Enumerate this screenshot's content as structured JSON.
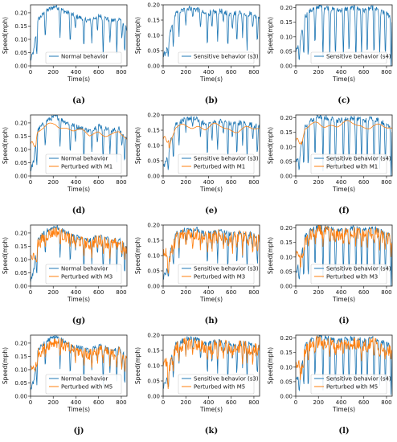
{
  "chart_data": [
    {
      "caption": "(a)",
      "type": "line",
      "xlabel": "Time(s)",
      "ylabel": "Speed(mph)",
      "xlim": [
        0,
        850
      ],
      "ylim": [
        0,
        0.23
      ],
      "xticks": [
        0,
        200,
        400,
        600,
        800
      ],
      "yticks": [
        0.0,
        0.05,
        0.1,
        0.15,
        0.2
      ],
      "legend_position": "bottom-center",
      "series": [
        {
          "name": "Normal behavior",
          "style": "ref",
          "profile": "normal"
        }
      ]
    },
    {
      "caption": "(b)",
      "type": "line",
      "xlabel": "Time(s)",
      "ylabel": "Speed(mph)",
      "xlim": [
        0,
        850
      ],
      "ylim": [
        0,
        0.2
      ],
      "xticks": [
        0,
        200,
        400,
        600,
        800
      ],
      "yticks": [
        0.0,
        0.05,
        0.1,
        0.15,
        0.2
      ],
      "legend_position": "bottom-center",
      "series": [
        {
          "name": "Sensitive behavior (s3)",
          "style": "ref",
          "profile": "s3"
        }
      ]
    },
    {
      "caption": "(c)",
      "type": "line",
      "xlabel": "Time(s)",
      "ylabel": "Speed(mph)",
      "xlim": [
        0,
        850
      ],
      "ylim": [
        0,
        0.21
      ],
      "xticks": [
        0,
        200,
        400,
        600,
        800
      ],
      "yticks": [
        0.0,
        0.05,
        0.1,
        0.15,
        0.2
      ],
      "legend_position": "bottom-center",
      "series": [
        {
          "name": "Sensitive behavior (s4)",
          "style": "ref",
          "profile": "s4"
        }
      ]
    },
    {
      "caption": "(d)",
      "type": "line",
      "xlabel": "Time(s)",
      "ylabel": "Speed(mph)",
      "xlim": [
        0,
        850
      ],
      "ylim": [
        0,
        0.23
      ],
      "xticks": [
        0,
        200,
        400,
        600,
        800
      ],
      "yticks": [
        0.0,
        0.05,
        0.1,
        0.15,
        0.2
      ],
      "legend_position": "bottom-center",
      "series": [
        {
          "name": "Normal behavior",
          "style": "ref",
          "profile": "normal"
        },
        {
          "name": "Perturbed with M1",
          "style": "smooth",
          "profile": "normal"
        }
      ]
    },
    {
      "caption": "(e)",
      "type": "line",
      "xlabel": "Time(s)",
      "ylabel": "Speed(mph)",
      "xlim": [
        0,
        850
      ],
      "ylim": [
        0,
        0.2
      ],
      "xticks": [
        0,
        200,
        400,
        600,
        800
      ],
      "yticks": [
        0.0,
        0.05,
        0.1,
        0.15,
        0.2
      ],
      "legend_position": "bottom-center",
      "series": [
        {
          "name": "Sensitive behavior (s3)",
          "style": "ref",
          "profile": "s3"
        },
        {
          "name": "Perturbed with M1",
          "style": "smooth",
          "profile": "s3"
        }
      ]
    },
    {
      "caption": "(f)",
      "type": "line",
      "xlabel": "Time(s)",
      "ylabel": "Speed(mph)",
      "xlim": [
        0,
        850
      ],
      "ylim": [
        0,
        0.21
      ],
      "xticks": [
        0,
        200,
        400,
        600,
        800
      ],
      "yticks": [
        0.0,
        0.05,
        0.1,
        0.15,
        0.2
      ],
      "legend_position": "bottom-center",
      "series": [
        {
          "name": "Sensitive behavior (s4)",
          "style": "ref",
          "profile": "s4"
        },
        {
          "name": "Perturbed with M1",
          "style": "smooth",
          "profile": "s4"
        }
      ]
    },
    {
      "caption": "(g)",
      "type": "line",
      "xlabel": "Time(s)",
      "ylabel": "Speed(mph)",
      "xlim": [
        0,
        850
      ],
      "ylim": [
        0,
        0.23
      ],
      "xticks": [
        0,
        200,
        400,
        600,
        800
      ],
      "yticks": [
        0.0,
        0.05,
        0.1,
        0.15,
        0.2
      ],
      "legend_position": "bottom-center",
      "series": [
        {
          "name": "Normal behavior",
          "style": "ref",
          "profile": "normal"
        },
        {
          "name": "Perturbed with M3",
          "style": "noisy",
          "profile": "normal"
        }
      ]
    },
    {
      "caption": "(h)",
      "type": "line",
      "xlabel": "Time(s)",
      "ylabel": "Speed(mph)",
      "xlim": [
        0,
        850
      ],
      "ylim": [
        0,
        0.2
      ],
      "xticks": [
        0,
        200,
        400,
        600,
        800
      ],
      "yticks": [
        0.0,
        0.05,
        0.1,
        0.15,
        0.2
      ],
      "legend_position": "bottom-center",
      "series": [
        {
          "name": "Sensitive behavior (s3)",
          "style": "ref",
          "profile": "s3"
        },
        {
          "name": "Perturbed with M3",
          "style": "noisy",
          "profile": "s3"
        }
      ]
    },
    {
      "caption": "(i)",
      "type": "line",
      "xlabel": "Time(s)",
      "ylabel": "Speed(mph)",
      "xlim": [
        0,
        850
      ],
      "ylim": [
        0,
        0.21
      ],
      "xticks": [
        0,
        200,
        400,
        600,
        800
      ],
      "yticks": [
        0.0,
        0.05,
        0.1,
        0.15,
        0.2
      ],
      "legend_position": "bottom-center",
      "series": [
        {
          "name": "Sensitive behavior (s4)",
          "style": "ref",
          "profile": "s4"
        },
        {
          "name": "Perturbed with M3",
          "style": "noisy",
          "profile": "s4"
        }
      ]
    },
    {
      "caption": "(j)",
      "type": "line",
      "xlabel": "Time(s)",
      "ylabel": "Speed(mph)",
      "xlim": [
        0,
        850
      ],
      "ylim": [
        0,
        0.23
      ],
      "xticks": [
        0,
        200,
        400,
        600,
        800
      ],
      "yticks": [
        0.0,
        0.05,
        0.1,
        0.15,
        0.2
      ],
      "legend_position": "bottom-center",
      "series": [
        {
          "name": "Normal behavior",
          "style": "ref",
          "profile": "normal"
        },
        {
          "name": "Perturbed with M5",
          "style": "noisy",
          "profile": "normal"
        }
      ]
    },
    {
      "caption": "(k)",
      "type": "line",
      "xlabel": "Time(s)",
      "ylabel": "Speed(mph)",
      "xlim": [
        0,
        850
      ],
      "ylim": [
        0,
        0.2
      ],
      "xticks": [
        0,
        200,
        400,
        600,
        800
      ],
      "yticks": [
        0.0,
        0.05,
        0.1,
        0.15,
        0.2
      ],
      "legend_position": "bottom-center",
      "series": [
        {
          "name": "Sensitive behavior (s3)",
          "style": "ref",
          "profile": "s3"
        },
        {
          "name": "Perturbed with M5",
          "style": "noisy",
          "profile": "s3"
        }
      ]
    },
    {
      "caption": "(l)",
      "type": "line",
      "xlabel": "Time(s)",
      "ylabel": "Speed(mph)",
      "xlim": [
        0,
        850
      ],
      "ylim": [
        0,
        0.21
      ],
      "xticks": [
        0,
        200,
        400,
        600,
        800
      ],
      "yticks": [
        0.0,
        0.05,
        0.1,
        0.15,
        0.2
      ],
      "legend_position": "bottom-center",
      "series": [
        {
          "name": "Sensitive behavior (s4)",
          "style": "ref",
          "profile": "s4"
        },
        {
          "name": "Perturbed with M5",
          "style": "noisy",
          "profile": "s4"
        }
      ]
    }
  ],
  "profiles": {
    "normal": {
      "baseline": [
        [
          0,
          0.02
        ],
        [
          30,
          0.06
        ],
        [
          60,
          0.17
        ],
        [
          100,
          0.19
        ],
        [
          150,
          0.21
        ],
        [
          220,
          0.225
        ],
        [
          300,
          0.205
        ],
        [
          380,
          0.19
        ],
        [
          450,
          0.18
        ],
        [
          520,
          0.17
        ],
        [
          600,
          0.19
        ],
        [
          660,
          0.18
        ],
        [
          720,
          0.17
        ],
        [
          780,
          0.18
        ],
        [
          850,
          0.14
        ]
      ],
      "dips": [
        [
          55,
          0.03
        ],
        [
          130,
          0.1
        ],
        [
          260,
          0.11
        ],
        [
          350,
          0.07
        ],
        [
          395,
          0.13
        ],
        [
          470,
          0.05
        ],
        [
          540,
          0.09
        ],
        [
          590,
          0.12
        ],
        [
          640,
          0.04
        ],
        [
          700,
          0.08
        ],
        [
          760,
          0.05
        ],
        [
          805,
          0.1
        ],
        [
          830,
          0.03
        ]
      ]
    },
    "s3": {
      "baseline": [
        [
          0,
          0.03
        ],
        [
          30,
          0.05
        ],
        [
          70,
          0.12
        ],
        [
          110,
          0.17
        ],
        [
          160,
          0.18
        ],
        [
          230,
          0.19
        ],
        [
          300,
          0.185
        ],
        [
          370,
          0.17
        ],
        [
          440,
          0.175
        ],
        [
          520,
          0.18
        ],
        [
          600,
          0.17
        ],
        [
          680,
          0.175
        ],
        [
          760,
          0.17
        ],
        [
          850,
          0.16
        ]
      ],
      "dips": [
        [
          45,
          0.02
        ],
        [
          90,
          0.05
        ],
        [
          140,
          0.1
        ],
        [
          200,
          0.14
        ],
        [
          260,
          0.16
        ],
        [
          330,
          0.12
        ],
        [
          390,
          0.06
        ],
        [
          430,
          0.11
        ],
        [
          480,
          0.08
        ],
        [
          530,
          0.13
        ],
        [
          570,
          0.04
        ],
        [
          610,
          0.12
        ],
        [
          650,
          0.06
        ],
        [
          700,
          0.1
        ],
        [
          740,
          0.05
        ],
        [
          790,
          0.12
        ],
        [
          830,
          0.06
        ]
      ]
    },
    "s4": {
      "baseline": [
        [
          0,
          0.05
        ],
        [
          40,
          0.08
        ],
        [
          80,
          0.17
        ],
        [
          130,
          0.19
        ],
        [
          200,
          0.205
        ],
        [
          280,
          0.2
        ],
        [
          360,
          0.19
        ],
        [
          440,
          0.195
        ],
        [
          520,
          0.2
        ],
        [
          600,
          0.19
        ],
        [
          680,
          0.2
        ],
        [
          760,
          0.185
        ],
        [
          850,
          0.17
        ]
      ],
      "dips": [
        [
          30,
          0.01
        ],
        [
          70,
          0.02
        ],
        [
          110,
          0.01
        ],
        [
          170,
          0.05
        ],
        [
          240,
          0.02
        ],
        [
          300,
          0.03
        ],
        [
          350,
          0.01
        ],
        [
          420,
          0.03
        ],
        [
          470,
          0.02
        ],
        [
          530,
          0.01
        ],
        [
          580,
          0.04
        ],
        [
          630,
          0.02
        ],
        [
          690,
          0.01
        ],
        [
          740,
          0.03
        ],
        [
          790,
          0.02
        ],
        [
          840,
          0.0
        ]
      ]
    }
  },
  "colors": {
    "ref": "#1f77b4",
    "perturbed": "#ff7f0e",
    "axes": "#222222"
  }
}
